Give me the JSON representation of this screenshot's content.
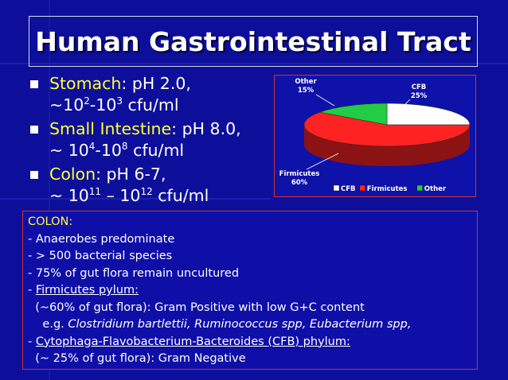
{
  "slide": {
    "title": "Human Gastrointestinal Tract"
  },
  "bullets": [
    {
      "organ": "Stomach",
      "sep": ": ",
      "ph": "pH 2.0,",
      "c1": "~10",
      "e1": "2",
      "dash": "-10",
      "e2": "3",
      "unit": " cfu/ml"
    },
    {
      "organ": "Small Intestine",
      "sep": ": ",
      "ph": "pH 8.0,",
      "c1": "~ 10",
      "e1": "4",
      "dash": "-10",
      "e2": "8",
      "unit": " cfu/ml"
    },
    {
      "organ": "Colon",
      "sep": ": ",
      "ph": "pH 6-7,",
      "c1": "~ 10",
      "e1": "11",
      "dash": " – 10",
      "e2": "12",
      "unit": " cfu/ml"
    }
  ],
  "colon": {
    "heading": "COLON:",
    "l1": "- Anaerobes predominate",
    "l2": "- > 500 bacterial species",
    "l3": "- 75% of gut flora remain uncultured",
    "l4_prefix": "- ",
    "l4_link": "Firmicutes pylum:",
    "l5": "  (~60% of gut flora): Gram Positive with low G+C content",
    "l6_prefix": "    e.g. ",
    "l6_species": "Clostridium bartlettii, Ruminococcus spp, Eubacterium spp,",
    "l7_prefix": "- ",
    "l7_link": "Cytophaga-Flavobacterium-Bacteroides (CFB) phylum:",
    "l8": "  (~ 25% of gut flora): Gram Negative"
  },
  "chart_data": {
    "type": "pie",
    "categories": [
      "CFB",
      "Firmicutes",
      "Other"
    ],
    "values": [
      25,
      60,
      15
    ],
    "labels": [
      {
        "name": "CFB",
        "pct": "25%"
      },
      {
        "name": "Firmicutes",
        "pct": "60%"
      },
      {
        "name": "Other",
        "pct": "15%"
      }
    ],
    "colors": [
      "#ffffff",
      "#ff2222",
      "#22cc44"
    ],
    "legend_position": "bottom-right",
    "three_d": true
  }
}
